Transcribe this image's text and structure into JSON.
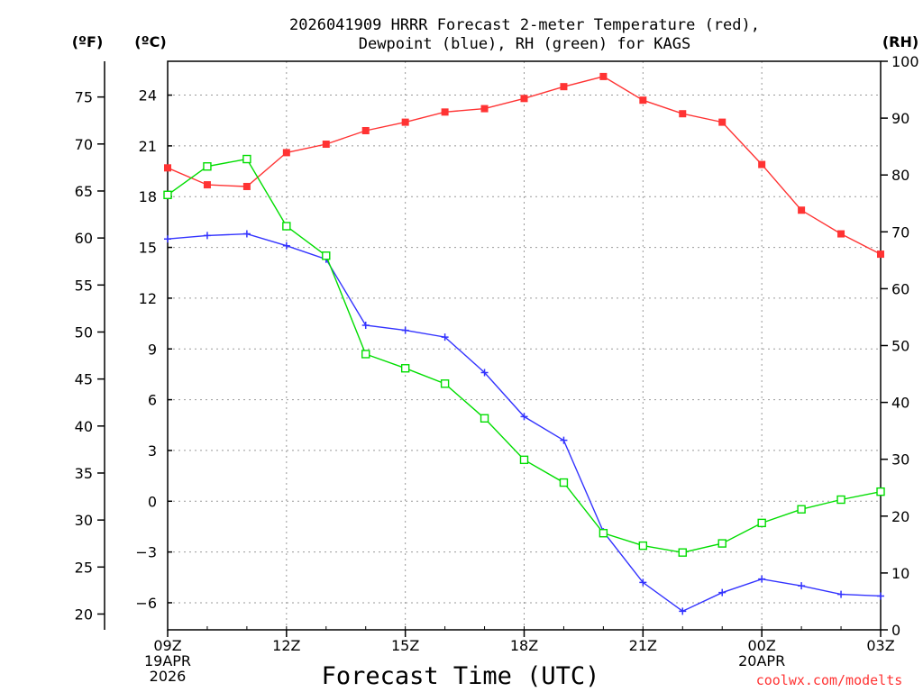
{
  "chart_data": {
    "type": "line",
    "title": [
      "2026041909 HRRR Forecast 2-meter Temperature (red),",
      "Dewpoint (blue), RH (green) for KAGS"
    ],
    "xlabel": "Forecast Time (UTC)",
    "credit": "coolwx.com/modelts",
    "units": {
      "fahrenheit": "(ºF)",
      "celsius": "(ºC)",
      "rh": "(RH)"
    },
    "x_hours": [
      0,
      1,
      2,
      3,
      4,
      5,
      6,
      7,
      8,
      9,
      10,
      11,
      12,
      13,
      14,
      15,
      16,
      17,
      18
    ],
    "x_ticks": [
      {
        "hour": 0,
        "lines": [
          "09Z",
          "19APR",
          "2026"
        ]
      },
      {
        "hour": 3,
        "lines": [
          "12Z"
        ]
      },
      {
        "hour": 6,
        "lines": [
          "15Z"
        ]
      },
      {
        "hour": 9,
        "lines": [
          "18Z"
        ]
      },
      {
        "hour": 12,
        "lines": [
          "21Z"
        ]
      },
      {
        "hour": 15,
        "lines": [
          "00Z",
          "20APR"
        ]
      },
      {
        "hour": 18,
        "lines": [
          "03Z"
        ]
      }
    ],
    "celsius_axis": {
      "min": -7.6,
      "max": 26,
      "ticks": [
        24,
        21,
        18,
        15,
        12,
        9,
        6,
        3,
        0,
        -3,
        -6
      ],
      "tick_labels": [
        "24",
        "21",
        "18",
        "15",
        "12",
        "9",
        "6",
        "3",
        "0",
        "−3",
        "−6"
      ]
    },
    "fahrenheit_axis": {
      "ticks": [
        75,
        70,
        65,
        60,
        55,
        50,
        45,
        40,
        35,
        30,
        25,
        20
      ],
      "tick_labels": [
        "75",
        "70",
        "65",
        "60",
        "55",
        "50",
        "45",
        "40",
        "35",
        "30",
        "25",
        "20"
      ]
    },
    "rh_axis": {
      "min": 0,
      "max": 100,
      "ticks": [
        100,
        90,
        80,
        70,
        60,
        50,
        40,
        30,
        20,
        10,
        0
      ],
      "tick_labels": [
        "100",
        "90",
        "80",
        "70",
        "60",
        "50",
        "40",
        "30",
        "20",
        "10",
        "0"
      ]
    },
    "grid": true,
    "series": [
      {
        "name": "Temperature",
        "axis": "celsius",
        "color": "#ff3333",
        "marker": "filled-square",
        "values": [
          19.7,
          18.7,
          18.6,
          20.6,
          21.1,
          21.9,
          22.4,
          23.0,
          23.2,
          23.8,
          24.5,
          25.1,
          23.7,
          22.9,
          22.4,
          19.9,
          17.2,
          15.8,
          14.6
        ]
      },
      {
        "name": "Dewpoint",
        "axis": "celsius",
        "color": "#3333ff",
        "marker": "plus",
        "values": [
          15.5,
          15.7,
          15.8,
          15.1,
          14.3,
          10.4,
          10.1,
          9.7,
          7.6,
          5.0,
          3.6,
          -1.8,
          -4.8,
          -6.5,
          -5.4,
          -4.6,
          -5.0,
          -5.5,
          -5.6
        ]
      },
      {
        "name": "RH",
        "axis": "rh",
        "color": "#00dd00",
        "marker": "open-square",
        "values": [
          76.5,
          81.5,
          82.8,
          71.0,
          65.8,
          48.5,
          46.0,
          43.3,
          37.2,
          29.9,
          25.9,
          17.0,
          14.8,
          13.6,
          15.2,
          18.8,
          21.2,
          22.9,
          24.3
        ]
      }
    ]
  }
}
